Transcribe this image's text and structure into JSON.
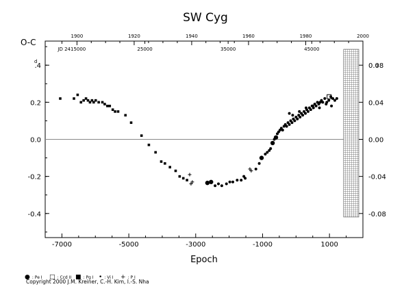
{
  "chart_data": {
    "type": "scatter",
    "title": "SW Cyg",
    "ylabel_left": "O-C",
    "ylabel_left_sub": "d",
    "ylabel_right_sub": "d",
    "xlabel": "Epoch",
    "xlim": [
      -7500,
      2000
    ],
    "ylim": [
      -0.53,
      0.53
    ],
    "x_ticks": [
      -7000,
      -5000,
      -3000,
      -1000,
      1000
    ],
    "x_tick_labels": [
      "-7000",
      "-5000",
      "-3000",
      "-1000",
      "1000"
    ],
    "y_ticks": [
      0.4,
      0.2,
      0.0,
      -0.2,
      -0.4
    ],
    "y_tick_labels": [
      ".4",
      "0.2",
      "0.0",
      "-0.2",
      "-0.4"
    ],
    "y2_ticks": [
      0.08,
      0.04,
      0.0,
      -0.04,
      -0.08
    ],
    "y2_tick_labels": [
      "0.08",
      "0.04",
      "0.00",
      "-0.04",
      "-0.08"
    ],
    "y2_scale": 5,
    "year_axis": [
      {
        "label": "1900",
        "x": -6550
      },
      {
        "label": "1920",
        "x": -4840
      },
      {
        "label": "1940",
        "x": -3120
      },
      {
        "label": "1960",
        "x": -1420
      },
      {
        "label": "1980",
        "x": 290
      },
      {
        "label": "2000",
        "x": 2000
      }
    ],
    "jd_axis": [
      {
        "label": "JD 2415000",
        "x": -7000
      },
      {
        "label": "25000",
        "x": -4520
      },
      {
        "label": "35000",
        "x": -2030
      },
      {
        "label": "45000",
        "x": 470
      }
    ],
    "hatched_region": [
      1300,
      2000
    ],
    "grid": false,
    "legend_position": "bottom-left",
    "series": [
      {
        "name": "Pe I",
        "marker": "filled-circle-large",
        "points": [
          [
            -2650,
            -0.235
          ],
          [
            -2540,
            -0.23
          ],
          [
            -1030,
            -0.1
          ],
          [
            -700,
            -0.02
          ],
          [
            -600,
            0.01
          ]
        ]
      },
      {
        "name": "Ccd II",
        "marker": "open-square",
        "points": [
          [
            990,
            0.23
          ]
        ]
      },
      {
        "name": "Pg I",
        "marker": "filled-square",
        "points": [
          [
            -7050,
            0.22
          ],
          [
            -6640,
            0.22
          ],
          [
            -6530,
            0.24
          ],
          [
            -6430,
            0.2
          ],
          [
            -6350,
            0.21
          ],
          [
            -6280,
            0.22
          ],
          [
            -6220,
            0.21
          ],
          [
            -6160,
            0.2
          ],
          [
            -6100,
            0.21
          ],
          [
            -6050,
            0.2
          ],
          [
            -5990,
            0.21
          ],
          [
            -5900,
            0.2
          ],
          [
            -5790,
            0.2
          ],
          [
            -5720,
            0.19
          ],
          [
            -5640,
            0.18
          ],
          [
            -5570,
            0.18
          ],
          [
            -5480,
            0.16
          ],
          [
            -5410,
            0.15
          ],
          [
            -5320,
            0.15
          ],
          [
            -5100,
            0.13
          ],
          [
            -4930,
            0.09
          ],
          [
            -4620,
            0.02
          ],
          [
            -4400,
            -0.03
          ],
          [
            -4200,
            -0.07
          ],
          [
            -4030,
            -0.12
          ],
          [
            -3920,
            -0.13
          ],
          [
            -3770,
            -0.15
          ],
          [
            -3600,
            -0.17
          ],
          [
            -3480,
            -0.2
          ],
          [
            -3370,
            -0.21
          ],
          [
            -3260,
            -0.22
          ]
        ]
      },
      {
        "name": "Vi I",
        "marker": "filled-circle-small",
        "points": [
          [
            -2420,
            -0.25
          ],
          [
            -2320,
            -0.24
          ],
          [
            -2220,
            -0.25
          ],
          [
            -2080,
            -0.24
          ],
          [
            -1980,
            -0.23
          ],
          [
            -1890,
            -0.23
          ],
          [
            -1760,
            -0.22
          ],
          [
            -1640,
            -0.22
          ],
          [
            -1520,
            -0.21
          ],
          [
            -1560,
            -0.2
          ],
          [
            -1200,
            -0.16
          ],
          [
            -1100,
            -0.13
          ],
          [
            -920,
            -0.08
          ],
          [
            -860,
            -0.07
          ],
          [
            -800,
            -0.06
          ],
          [
            -760,
            -0.05
          ],
          [
            -650,
            0.0
          ],
          [
            -560,
            0.03
          ],
          [
            -520,
            0.04
          ],
          [
            -480,
            0.05
          ],
          [
            -440,
            0.06
          ],
          [
            -400,
            0.05
          ],
          [
            -360,
            0.07
          ],
          [
            -320,
            0.08
          ],
          [
            -280,
            0.07
          ],
          [
            -240,
            0.09
          ],
          [
            -200,
            0.08
          ],
          [
            -160,
            0.1
          ],
          [
            -120,
            0.09
          ],
          [
            -80,
            0.11
          ],
          [
            -40,
            0.1
          ],
          [
            0,
            0.12
          ],
          [
            40,
            0.11
          ],
          [
            80,
            0.13
          ],
          [
            120,
            0.12
          ],
          [
            160,
            0.14
          ],
          [
            200,
            0.13
          ],
          [
            240,
            0.15
          ],
          [
            280,
            0.14
          ],
          [
            320,
            0.16
          ],
          [
            360,
            0.15
          ],
          [
            400,
            0.17
          ],
          [
            440,
            0.16
          ],
          [
            480,
            0.18
          ],
          [
            520,
            0.17
          ],
          [
            560,
            0.19
          ],
          [
            600,
            0.18
          ],
          [
            640,
            0.2
          ],
          [
            680,
            0.19
          ],
          [
            720,
            0.2
          ],
          [
            760,
            0.21
          ],
          [
            800,
            0.2
          ],
          [
            860,
            0.22
          ],
          [
            920,
            0.2
          ],
          [
            980,
            0.21
          ],
          [
            1040,
            0.23
          ],
          [
            1100,
            0.22
          ],
          [
            1160,
            0.21
          ],
          [
            1220,
            0.22
          ],
          [
            -200,
            0.14
          ],
          [
            -100,
            0.13
          ],
          [
            100,
            0.15
          ],
          [
            300,
            0.17
          ],
          [
            500,
            0.18
          ],
          [
            700,
            0.17
          ],
          [
            900,
            0.19
          ],
          [
            1060,
            0.18
          ]
        ]
      },
      {
        "name": "P I",
        "marker": "plus",
        "points": [
          [
            -3180,
            -0.19
          ],
          [
            -3140,
            -0.24
          ],
          [
            -3100,
            -0.23
          ],
          [
            -1380,
            -0.16
          ],
          [
            -1340,
            -0.17
          ]
        ]
      }
    ]
  },
  "legend": [
    {
      "symbol": "●",
      "label": ": Pe I"
    },
    {
      "symbol": "□",
      "label": ": Ccd II"
    },
    {
      "symbol": "■",
      "label": ": Pg I"
    },
    {
      "symbol": "•",
      "label": ": Vi I"
    },
    {
      "symbol": "+",
      "label": ": P I"
    }
  ],
  "copyright": "Copyright 2000 J.M. Kreiner, C.-H. Kim, I.-S. Nha"
}
